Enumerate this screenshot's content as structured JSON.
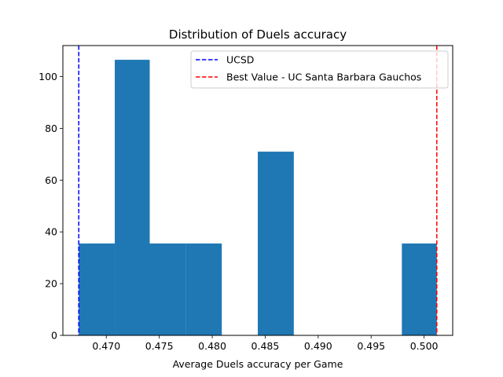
{
  "chart_data": {
    "type": "bar",
    "title": "Distribution of Duels accuracy",
    "xlabel": "Average Duels accuracy per Game",
    "ylabel": "",
    "xlim": [
      0.4659,
      0.5027
    ],
    "ylim": [
      0,
      112
    ],
    "x_ticks": [
      0.47,
      0.475,
      0.48,
      0.485,
      0.49,
      0.495,
      0.5
    ],
    "x_tick_labels": [
      "0.470",
      "0.475",
      "0.480",
      "0.485",
      "0.490",
      "0.495",
      "0.500"
    ],
    "y_ticks": [
      0,
      20,
      40,
      60,
      80,
      100
    ],
    "y_tick_labels": [
      "0",
      "20",
      "40",
      "60",
      "80",
      "100"
    ],
    "bar_color": "#1f77b4",
    "bins": [
      {
        "x0": 0.4674,
        "x1": 0.4708,
        "value": 35.5
      },
      {
        "x0": 0.4708,
        "x1": 0.4741,
        "value": 106.5
      },
      {
        "x0": 0.4741,
        "x1": 0.4775,
        "value": 35.5
      },
      {
        "x0": 0.4775,
        "x1": 0.4809,
        "value": 35.5
      },
      {
        "x0": 0.4809,
        "x1": 0.4843,
        "value": 0
      },
      {
        "x0": 0.4843,
        "x1": 0.4877,
        "value": 71
      },
      {
        "x0": 0.4877,
        "x1": 0.4911,
        "value": 0
      },
      {
        "x0": 0.4911,
        "x1": 0.4945,
        "value": 0
      },
      {
        "x0": 0.4945,
        "x1": 0.4979,
        "value": 0
      },
      {
        "x0": 0.4979,
        "x1": 0.5012,
        "value": 35.5
      }
    ],
    "reference_lines": [
      {
        "name": "UCSD",
        "x": 0.4674,
        "color": "#0000ff"
      },
      {
        "name": "Best Value - UC Santa Barbara Gauchos",
        "x": 0.5012,
        "color": "#ff0000"
      }
    ],
    "grid": false,
    "legend_position": "top-right"
  }
}
